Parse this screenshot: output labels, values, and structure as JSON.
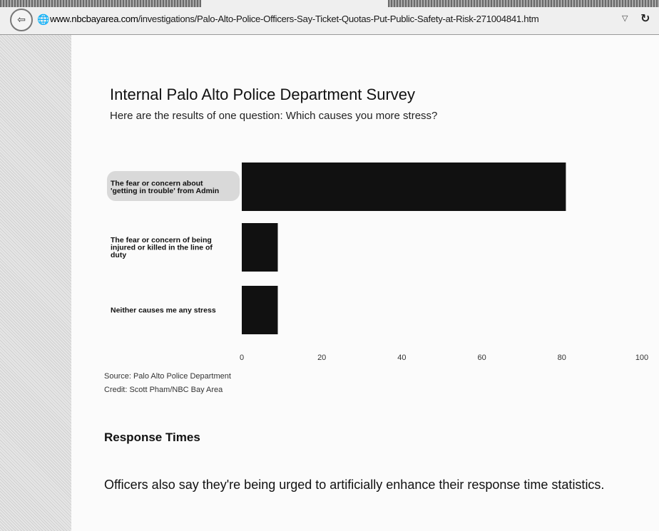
{
  "browser": {
    "url_domain": "www.nbcbayarea.com",
    "url_path": "/investigations/Palo-Alto-Police-Officers-Say-Ticket-Quotas-Put-Public-Safety-at-Risk-271004841.htm"
  },
  "article": {
    "source": "Source: Palo Alto Police Department",
    "credit": "Credit: Scott Pham/NBC Bay Area",
    "section_heading": "Response Times",
    "paragraph": "Officers also say they're being urged to artificially enhance their response time statistics."
  },
  "chart_data": {
    "type": "bar",
    "orientation": "horizontal",
    "title": "Internal Palo Alto Police Department Survey",
    "subtitle": "Here are the results of one question: Which causes you more stress?",
    "categories": [
      "The fear or concern about 'getting in trouble' from Admin",
      "The fear or concern of being injured or killed in the line of duty",
      "Neither causes me any stress"
    ],
    "category_lines": [
      [
        "The fear or concern about",
        "'getting in trouble' from Admin"
      ],
      [
        "The fear or concern of being",
        "injured or killed in the line of",
        "duty"
      ],
      [
        "Neither causes me any stress"
      ]
    ],
    "values": [
      81,
      9,
      9
    ],
    "xlim": [
      0,
      100
    ],
    "ticks": [
      0,
      20,
      40,
      60,
      80,
      100
    ],
    "bar_color": "#111111",
    "grid": false
  }
}
